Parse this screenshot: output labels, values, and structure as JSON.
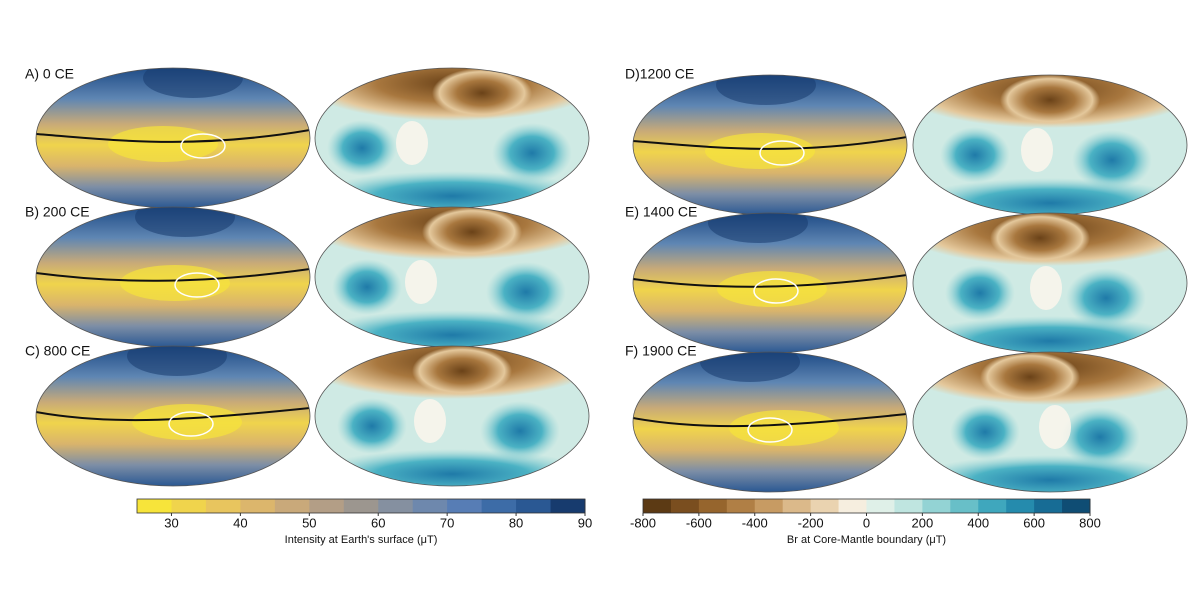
{
  "panels": [
    {
      "label": "A) 0 CE"
    },
    {
      "label": "B) 200 CE"
    },
    {
      "label": "C) 800 CE"
    },
    {
      "label": "D)1200 CE"
    },
    {
      "label": "E) 1400 CE"
    },
    {
      "label": "F) 1900 CE"
    }
  ],
  "colorbars": [
    {
      "title": "Intensity at Earth's surface (μT)",
      "lim": [
        25,
        90
      ],
      "ticks": [
        30,
        40,
        50,
        60,
        70,
        80,
        90
      ],
      "colors": [
        "#f7e43a",
        "#f0d44c",
        "#e8c55e",
        "#dcb66c",
        "#c9a97a",
        "#b39e86",
        "#9c968f",
        "#8590a0",
        "#6e88ad",
        "#577db5",
        "#3d6ca7",
        "#2a5893",
        "#173b6e"
      ]
    },
    {
      "title": "Br at Core-Mantle boundary (μT)",
      "lim": [
        -800,
        800
      ],
      "ticks": [
        -800,
        -600,
        -400,
        -200,
        0,
        200,
        400,
        600,
        800
      ],
      "colors": [
        "#5c3a14",
        "#7a4e1f",
        "#96652d",
        "#b07f45",
        "#c79b63",
        "#dbb98a",
        "#ead3b0",
        "#f6eedf",
        "#dff0e8",
        "#bfe5e0",
        "#93d3d4",
        "#68bfc8",
        "#3fa7bd",
        "#258bad",
        "#176c95",
        "#0f4d74"
      ]
    }
  ]
}
